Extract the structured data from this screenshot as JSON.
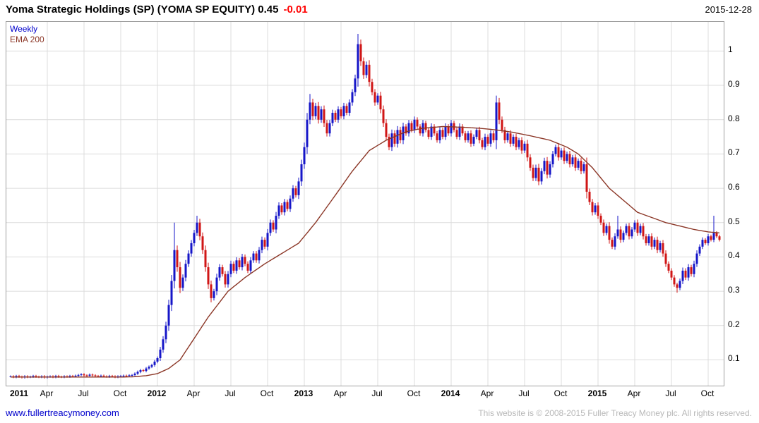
{
  "header": {
    "title": "Yoma Strategic Holdings (SP) (YOMA SP EQUITY) 0.45",
    "change": "-0.01",
    "date": "2015-12-28"
  },
  "legend": {
    "series": "Weekly",
    "ema": "EMA 200"
  },
  "footer": {
    "site": "www.fullertreacymoney.com",
    "copyright": "This website is © 2008-2015 Fuller Treacy Money plc. All rights reserved."
  },
  "chart_data": {
    "type": "candlestick",
    "title": "Yoma Strategic Holdings (SP) (YOMA SP EQUITY)",
    "interval": "Weekly",
    "last_close": 0.45,
    "change": -0.01,
    "date": "2015-12-28",
    "legend": [
      "Weekly",
      "EMA 200"
    ],
    "y_range": [
      0.025,
      1.085
    ],
    "y_ticks": [
      1,
      0.9,
      0.8,
      0.7,
      0.6,
      0.5,
      0.4,
      0.3,
      0.2,
      0.1
    ],
    "x_ticks": [
      {
        "label": "2011",
        "week": 0,
        "year": true
      },
      {
        "label": "Apr",
        "week": 13
      },
      {
        "label": "Jul",
        "week": 26
      },
      {
        "label": "Oct",
        "week": 39
      },
      {
        "label": "2012",
        "week": 52,
        "year": true
      },
      {
        "label": "Apr",
        "week": 65
      },
      {
        "label": "Jul",
        "week": 78
      },
      {
        "label": "Oct",
        "week": 91
      },
      {
        "label": "2013",
        "week": 104,
        "year": true
      },
      {
        "label": "Apr",
        "week": 117
      },
      {
        "label": "Jul",
        "week": 130
      },
      {
        "label": "Oct",
        "week": 143
      },
      {
        "label": "2014",
        "week": 156,
        "year": true
      },
      {
        "label": "Apr",
        "week": 169
      },
      {
        "label": "Jul",
        "week": 182
      },
      {
        "label": "Oct",
        "week": 195
      },
      {
        "label": "2015",
        "week": 208,
        "year": true
      },
      {
        "label": "Apr",
        "week": 221
      },
      {
        "label": "Jul",
        "week": 234
      },
      {
        "label": "Oct",
        "week": 247
      }
    ],
    "closes": [
      0.052,
      0.05,
      0.053,
      0.051,
      0.049,
      0.052,
      0.05,
      0.051,
      0.053,
      0.051,
      0.05,
      0.052,
      0.049,
      0.051,
      0.052,
      0.05,
      0.053,
      0.051,
      0.05,
      0.052,
      0.051,
      0.053,
      0.052,
      0.054,
      0.056,
      0.058,
      0.055,
      0.054,
      0.057,
      0.055,
      0.053,
      0.052,
      0.054,
      0.052,
      0.051,
      0.053,
      0.052,
      0.05,
      0.052,
      0.053,
      0.054,
      0.053,
      0.055,
      0.056,
      0.06,
      0.065,
      0.07,
      0.068,
      0.075,
      0.08,
      0.085,
      0.095,
      0.105,
      0.13,
      0.16,
      0.2,
      0.26,
      0.33,
      0.42,
      0.37,
      0.31,
      0.34,
      0.38,
      0.41,
      0.44,
      0.47,
      0.5,
      0.46,
      0.42,
      0.37,
      0.32,
      0.28,
      0.3,
      0.34,
      0.37,
      0.35,
      0.32,
      0.35,
      0.38,
      0.36,
      0.39,
      0.37,
      0.4,
      0.38,
      0.36,
      0.39,
      0.41,
      0.39,
      0.42,
      0.45,
      0.43,
      0.47,
      0.5,
      0.48,
      0.52,
      0.55,
      0.53,
      0.56,
      0.54,
      0.57,
      0.6,
      0.58,
      0.62,
      0.67,
      0.72,
      0.8,
      0.85,
      0.81,
      0.84,
      0.8,
      0.83,
      0.79,
      0.76,
      0.79,
      0.82,
      0.8,
      0.83,
      0.81,
      0.84,
      0.82,
      0.85,
      0.88,
      0.92,
      1.02,
      0.97,
      0.93,
      0.96,
      0.91,
      0.88,
      0.85,
      0.87,
      0.83,
      0.79,
      0.75,
      0.72,
      0.76,
      0.73,
      0.77,
      0.74,
      0.78,
      0.76,
      0.79,
      0.77,
      0.8,
      0.78,
      0.76,
      0.79,
      0.77,
      0.75,
      0.78,
      0.76,
      0.74,
      0.77,
      0.75,
      0.78,
      0.76,
      0.79,
      0.77,
      0.75,
      0.78,
      0.76,
      0.74,
      0.76,
      0.73,
      0.75,
      0.77,
      0.74,
      0.72,
      0.75,
      0.73,
      0.76,
      0.74,
      0.85,
      0.8,
      0.77,
      0.74,
      0.76,
      0.73,
      0.75,
      0.72,
      0.74,
      0.71,
      0.73,
      0.69,
      0.66,
      0.63,
      0.66,
      0.62,
      0.65,
      0.68,
      0.64,
      0.67,
      0.7,
      0.72,
      0.69,
      0.71,
      0.68,
      0.7,
      0.67,
      0.69,
      0.66,
      0.68,
      0.65,
      0.67,
      0.59,
      0.56,
      0.53,
      0.55,
      0.52,
      0.5,
      0.47,
      0.49,
      0.45,
      0.43,
      0.46,
      0.48,
      0.45,
      0.47,
      0.49,
      0.46,
      0.48,
      0.5,
      0.47,
      0.49,
      0.46,
      0.44,
      0.46,
      0.43,
      0.45,
      0.42,
      0.44,
      0.41,
      0.38,
      0.36,
      0.34,
      0.32,
      0.31,
      0.33,
      0.36,
      0.34,
      0.37,
      0.35,
      0.38,
      0.41,
      0.43,
      0.45,
      0.44,
      0.46,
      0.45,
      0.47,
      0.46,
      0.45
    ],
    "spike_highs": {
      "58": 0.5,
      "66": 0.52,
      "106": 0.875,
      "123": 1.05,
      "172": 0.87,
      "215": 0.52,
      "249": 0.52
    },
    "spike_lows": {
      "71": 0.268,
      "236": 0.296
    },
    "ema_anchors": [
      [
        0,
        0.05
      ],
      [
        40,
        0.05
      ],
      [
        44,
        0.051
      ],
      [
        48,
        0.054
      ],
      [
        52,
        0.06
      ],
      [
        56,
        0.075
      ],
      [
        60,
        0.1
      ],
      [
        64,
        0.15
      ],
      [
        70,
        0.225
      ],
      [
        77,
        0.3
      ],
      [
        83,
        0.34
      ],
      [
        90,
        0.38
      ],
      [
        96,
        0.41
      ],
      [
        102,
        0.44
      ],
      [
        108,
        0.5
      ],
      [
        115,
        0.58
      ],
      [
        121,
        0.65
      ],
      [
        127,
        0.71
      ],
      [
        133,
        0.74
      ],
      [
        140,
        0.765
      ],
      [
        146,
        0.775
      ],
      [
        153,
        0.78
      ],
      [
        160,
        0.778
      ],
      [
        166,
        0.775
      ],
      [
        172,
        0.77
      ],
      [
        178,
        0.763
      ],
      [
        184,
        0.753
      ],
      [
        191,
        0.74
      ],
      [
        197,
        0.72
      ],
      [
        201,
        0.7
      ],
      [
        206,
        0.66
      ],
      [
        212,
        0.6
      ],
      [
        217,
        0.565
      ],
      [
        222,
        0.53
      ],
      [
        227,
        0.515
      ],
      [
        232,
        0.5
      ],
      [
        237,
        0.49
      ],
      [
        242,
        0.48
      ],
      [
        247,
        0.473
      ],
      [
        251,
        0.47
      ]
    ],
    "colors": {
      "up": "#1616c8",
      "down": "#d01616",
      "ema": "#8b3626",
      "grid": "#dcdcdc",
      "border": "#a0a0a0",
      "title_change": "#ff0000",
      "legend_weekly": "#0000cc",
      "footer_link": "#0000cc",
      "footer_text": "#b8b8b8"
    }
  }
}
